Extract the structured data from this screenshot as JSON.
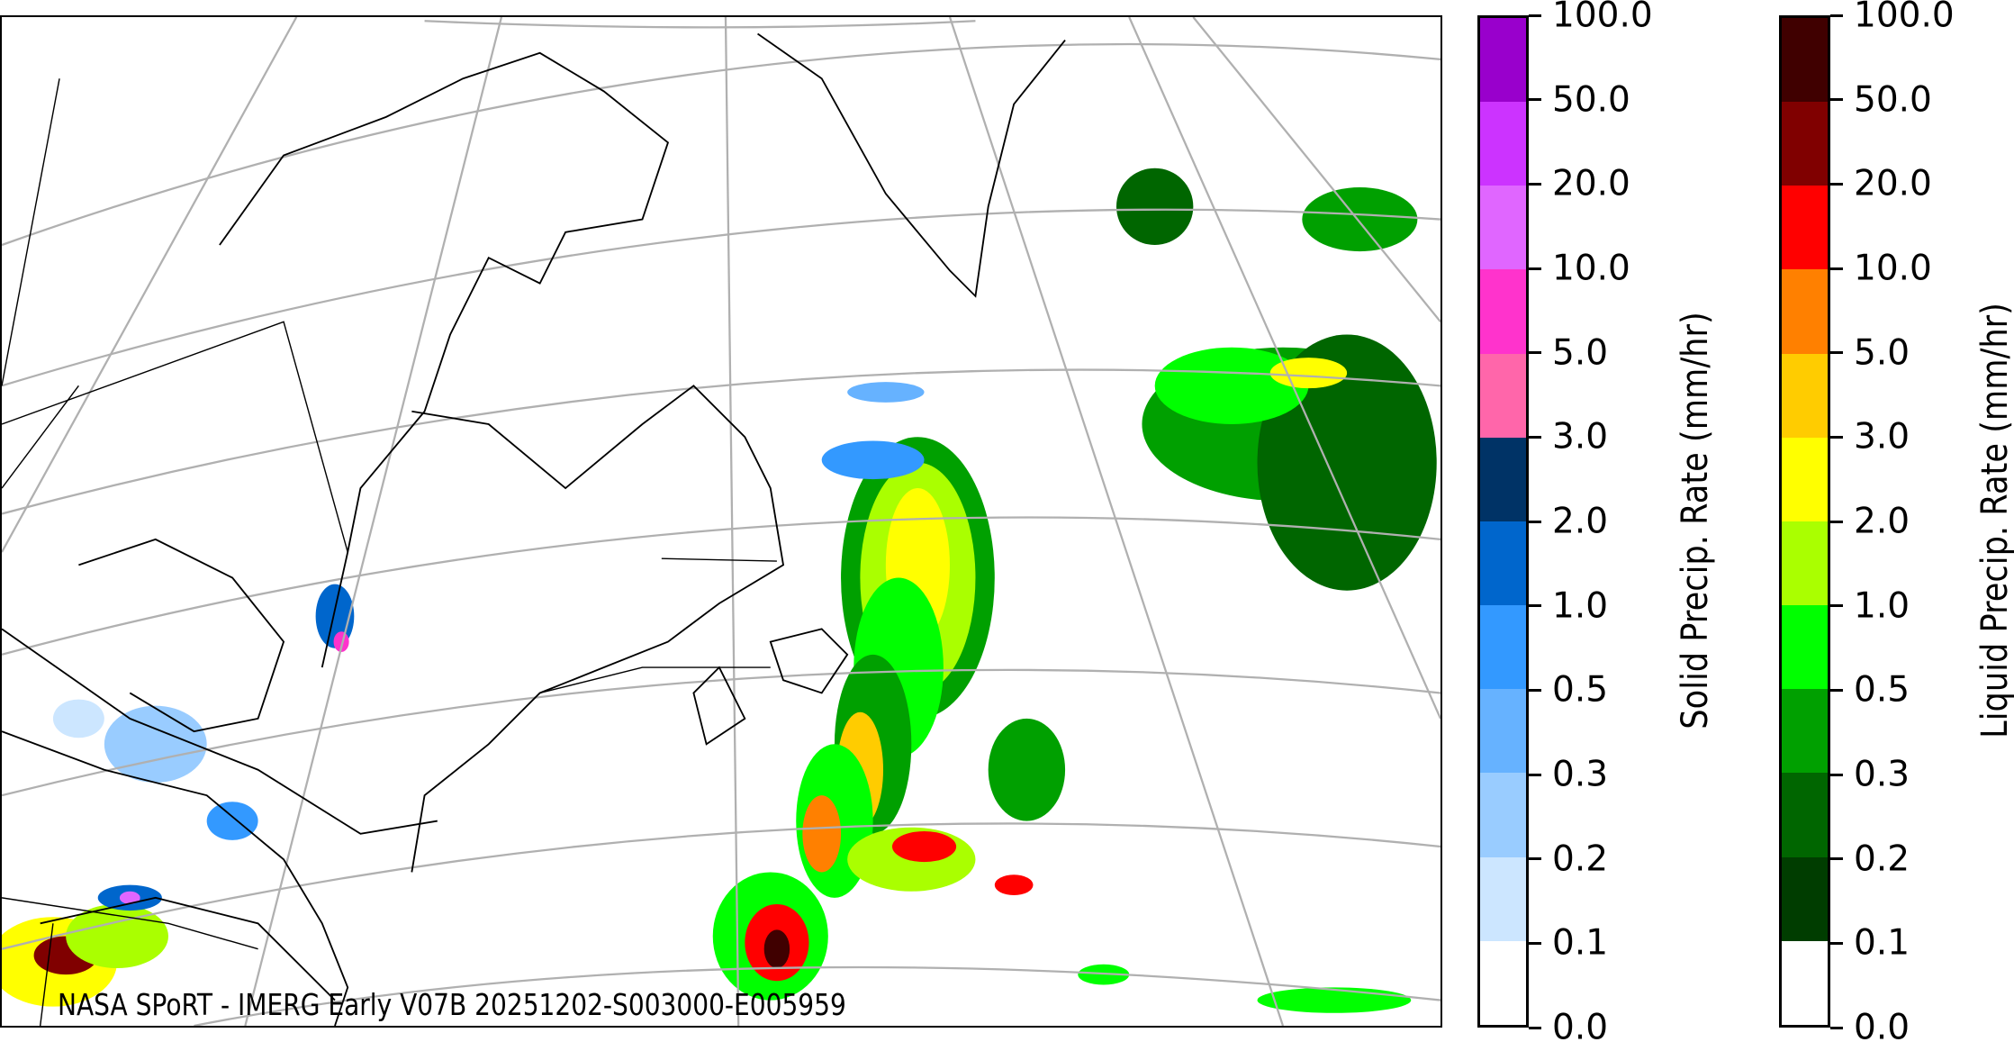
{
  "caption": "NASA SPoRT - IMERG Early V07B 20251202-S003000-E005959",
  "colorbars": [
    {
      "label": "Solid Precip. Rate (mm/hr)",
      "ticks": [
        "0.0",
        "0.1",
        "0.2",
        "0.3",
        "0.5",
        "1.0",
        "2.0",
        "3.0",
        "5.0",
        "10.0",
        "20.0",
        "50.0",
        "100.0"
      ],
      "colors": [
        "#ffffff",
        "#cce6ff",
        "#99ccff",
        "#66b2ff",
        "#3399ff",
        "#0066cc",
        "#003366",
        "#ff66aa",
        "#ff33cc",
        "#e066ff",
        "#cc33ff",
        "#9900cc"
      ]
    },
    {
      "label": "Liquid Precip. Rate (mm/hr)",
      "ticks": [
        "0.0",
        "0.1",
        "0.2",
        "0.3",
        "0.5",
        "1.0",
        "2.0",
        "3.0",
        "5.0",
        "10.0",
        "20.0",
        "50.0",
        "100.0"
      ],
      "colors": [
        "#ffffff",
        "#003d00",
        "#006600",
        "#00a000",
        "#00ff00",
        "#aaff00",
        "#ffff00",
        "#ffcc00",
        "#ff8000",
        "#ff0000",
        "#800000",
        "#400000"
      ]
    }
  ]
}
